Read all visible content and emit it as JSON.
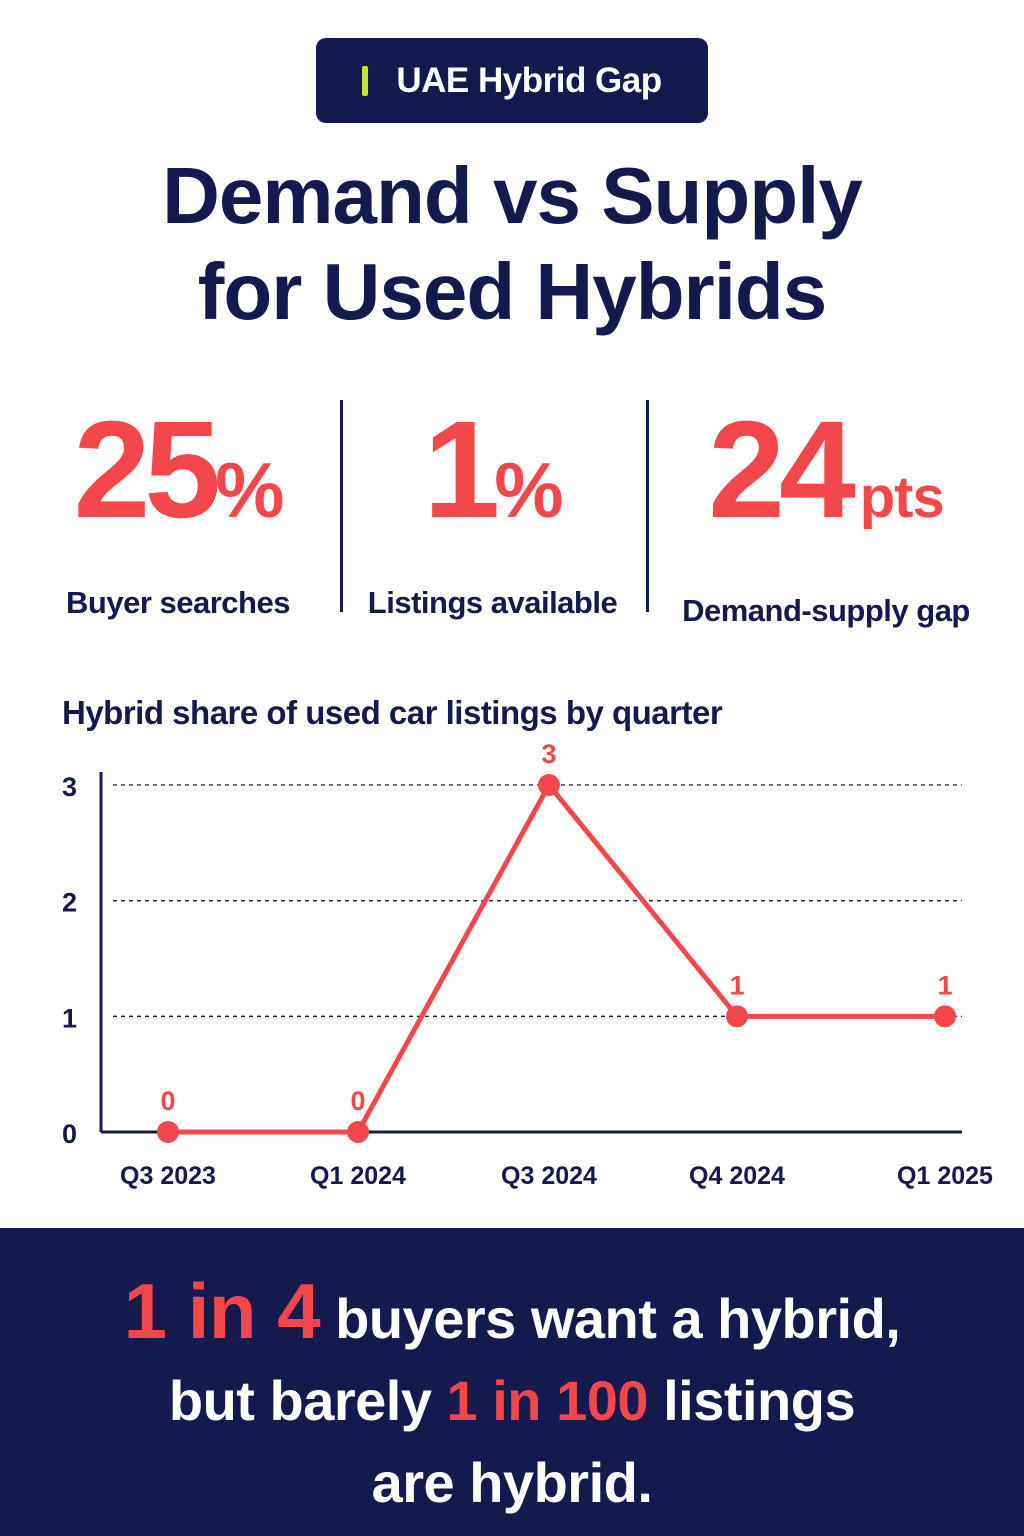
{
  "badge": {
    "text": "UAE Hybrid Gap"
  },
  "title": {
    "line1": "Demand vs Supply",
    "line2": "for Used Hybrids"
  },
  "stats": [
    {
      "value": "25",
      "unit": "%",
      "label": "Buyer searches"
    },
    {
      "value": "1",
      "unit": "%",
      "label": "Listings available"
    },
    {
      "value": "24",
      "unit": "pts",
      "label": "Demand-supply gap"
    }
  ],
  "colors": {
    "navy": "#141a4d",
    "red": "#f2484b",
    "accent": "#c6e33a"
  },
  "chart_data": {
    "type": "line",
    "title": "Hybrid share of used car listings by quarter",
    "categories": [
      "Q3 2023",
      "Q1 2024",
      "Q3 2024",
      "Q4 2024",
      "Q1 2025"
    ],
    "values": [
      0,
      0,
      3,
      1,
      1
    ],
    "data_labels": [
      "0",
      "0",
      "3",
      "1",
      "1"
    ],
    "ylim": [
      0,
      3
    ],
    "yticks": [
      "0",
      "1",
      "2",
      "3"
    ],
    "grid": true
  },
  "footer": {
    "part1": "1 in 4",
    "part2": " buyers want a hybrid,",
    "part3": "but barely ",
    "part4": "1 in 100",
    "part5": " listings",
    "part6": "are hybrid."
  }
}
